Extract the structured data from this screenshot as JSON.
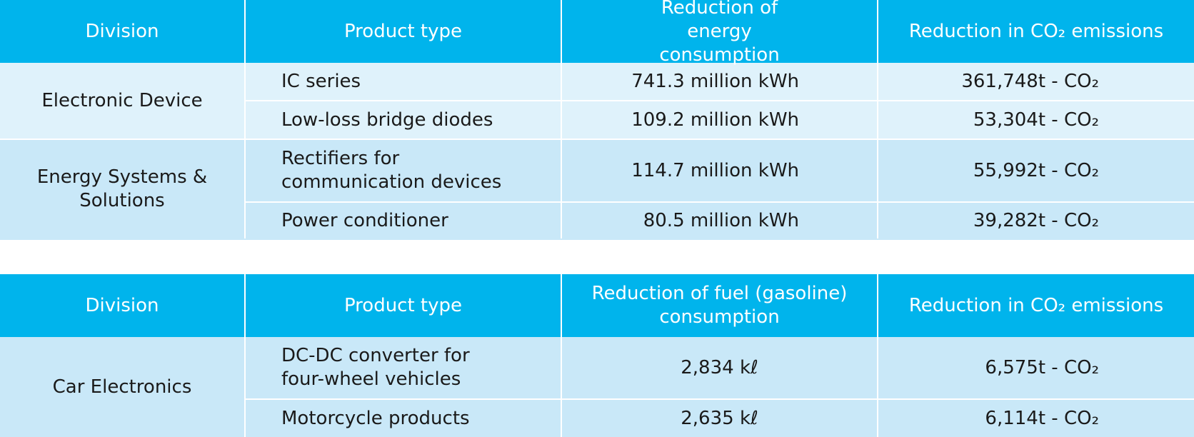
{
  "table1": {
    "headers": {
      "division": "Division",
      "product_type": "Product type",
      "reduction": "Reduction of energy consumption",
      "co2": "Reduction in CO₂ emissions"
    },
    "groups": [
      {
        "division": "Electronic Device",
        "rows": [
          {
            "product": "IC series",
            "reduction": "741.3 million kWh",
            "co2": "361,748t - CO₂"
          },
          {
            "product": "Low-loss bridge diodes",
            "reduction": "109.2 million kWh",
            "co2": "53,304t - CO₂"
          }
        ]
      },
      {
        "division": "Energy Systems & Solutions",
        "rows": [
          {
            "product": "Rectifiers for communication devices",
            "reduction": "114.7 million kWh",
            "co2": "55,992t - CO₂"
          },
          {
            "product": "Power conditioner",
            "reduction": "80.5 million kWh",
            "co2": "39,282t - CO₂"
          }
        ]
      }
    ]
  },
  "table2": {
    "headers": {
      "division": "Division",
      "product_type": "Product type",
      "reduction": "Reduction of fuel (gasoline) consumption",
      "co2": "Reduction in CO₂ emissions"
    },
    "groups": [
      {
        "division": "Car Electronics",
        "rows": [
          {
            "product": "DC-DC converter for four-wheel vehicles",
            "reduction": "2,834 kℓ",
            "co2": "6,575t - CO₂"
          },
          {
            "product": "Motorcycle products",
            "reduction": "2,635 kℓ",
            "co2": "6,114t - CO₂"
          }
        ]
      }
    ]
  },
  "colors": {
    "header_bg": "#00b4ec",
    "light_row": "#dff2fb",
    "mid_row": "#c9e8f8"
  }
}
